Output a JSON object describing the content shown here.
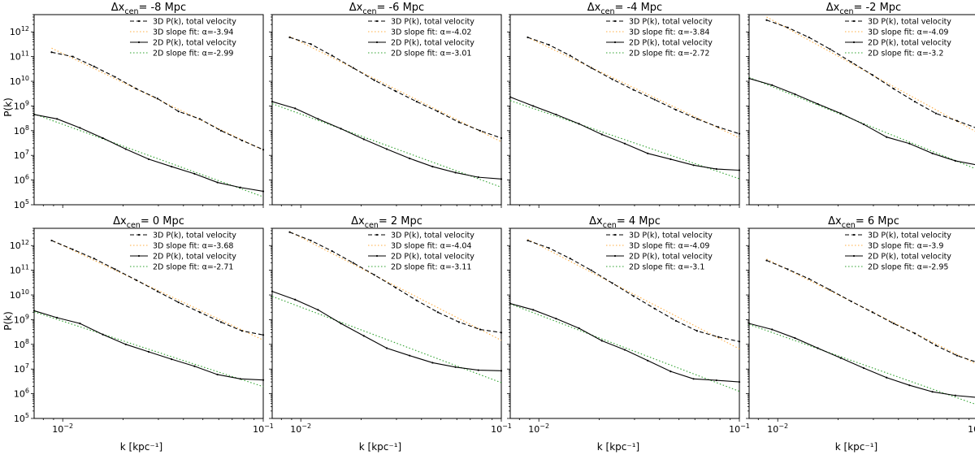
{
  "figure": {
    "ylabel": "P(k)",
    "xlabel": "k [kpc⁻¹]"
  },
  "chart_data": {
    "type": "line",
    "xscale": "log",
    "yscale": "log",
    "xlim": [
      0.0072,
      0.1
    ],
    "ylim": [
      100000,
      5000000000000
    ],
    "x_ticks": [
      {
        "value": 0.01,
        "mantissa": "10",
        "exp": "−2"
      },
      {
        "value": 0.1,
        "mantissa": "10",
        "exp": "−1"
      }
    ],
    "y_ticks": [
      {
        "value": 100000,
        "mantissa": "10",
        "exp": "5"
      },
      {
        "value": 1000000,
        "mantissa": "10",
        "exp": "6"
      },
      {
        "value": 10000000,
        "mantissa": "10",
        "exp": "7"
      },
      {
        "value": 100000000,
        "mantissa": "10",
        "exp": "8"
      },
      {
        "value": 1000000000,
        "mantissa": "10",
        "exp": "9"
      },
      {
        "value": 10000000000,
        "mantissa": "10",
        "exp": "10"
      },
      {
        "value": 100000000000,
        "mantissa": "10",
        "exp": "11"
      },
      {
        "value": 1000000000000,
        "mantissa": "10",
        "exp": "12"
      }
    ],
    "legend_labels": [
      "3D P(k), total velocity",
      "3D slope fit: ",
      "2D P(k), total velocity",
      "2D slope fit: "
    ],
    "legend_position": "top-right",
    "series_styles": [
      {
        "name": "3D P(k)",
        "color": "#000000",
        "dash": "dashed"
      },
      {
        "name": "3D slope fit",
        "color": "#ffae42",
        "dash": "dotted"
      },
      {
        "name": "2D P(k)",
        "color": "#000000",
        "dash": "solid"
      },
      {
        "name": "2D slope fit",
        "color": "#2ca02c",
        "dash": "dotted"
      }
    ],
    "panels": [
      {
        "title_prefix": "Δx",
        "title_sub": "cen",
        "title_suffix": "= -8 Mpc",
        "alpha3d": "α=-3.94",
        "alpha2d": "α=-2.99",
        "k3d_start": 0.0088,
        "p3d": [
          150000000000.0,
          100000000000.0,
          40000000000.0,
          15000000000.0,
          5000000000.0,
          2000000000.0,
          600000000.0,
          300000000.0,
          100000000.0,
          40000000.0,
          17000000.0
        ],
        "k2d_start": 0.0072,
        "p2d": [
          450000000.0,
          300000000.0,
          130000000.0,
          50000000.0,
          18000000.0,
          7000000.0,
          3500000.0,
          1800000.0,
          800000.0,
          500000.0,
          350000.0
        ]
      },
      {
        "title_prefix": "Δx",
        "title_sub": "cen",
        "title_suffix": "= -6 Mpc",
        "alpha3d": "α=-4.02",
        "alpha2d": "α=-3.01",
        "k3d_start": 0.0088,
        "p3d": [
          600000000000.0,
          320000000000.0,
          110000000000.0,
          35000000000.0,
          11000000000.0,
          4000000000.0,
          1500000000.0,
          600000000.0,
          220000000.0,
          100000000.0,
          50000000.0
        ],
        "k2d_start": 0.0072,
        "p2d": [
          1500000000.0,
          800000000.0,
          300000000.0,
          120000000.0,
          45000000.0,
          18000000.0,
          7500000.0,
          3500000.0,
          2000000.0,
          1300000.0,
          1100000.0
        ]
      },
      {
        "title_prefix": "Δx",
        "title_sub": "cen",
        "title_suffix": "= -4 Mpc",
        "alpha3d": "α=-3.84",
        "alpha2d": "α=-2.72",
        "k3d_start": 0.0088,
        "p3d": [
          600000000000.0,
          300000000000.0,
          110000000000.0,
          35000000000.0,
          12000000000.0,
          4500000000.0,
          1800000000.0,
          700000000.0,
          300000000.0,
          140000000.0,
          75000000.0
        ],
        "k2d_start": 0.0072,
        "p2d": [
          2300000000.0,
          1000000000.0,
          450000000.0,
          190000000.0,
          70000000.0,
          30000000.0,
          12000000.0,
          7000000.0,
          4000000.0,
          2800000.0,
          2500000.0
        ]
      },
      {
        "title_prefix": "Δx",
        "title_sub": "cen",
        "title_suffix": "= -2 Mpc",
        "alpha3d": "α=-4.09",
        "alpha2d": "α=-3.2",
        "k3d_start": 0.0088,
        "p3d": [
          3000000000000.0,
          1500000000000.0,
          600000000000.0,
          200000000000.0,
          60000000000.0,
          18000000000.0,
          5000000000.0,
          1500000000.0,
          500000000.0,
          250000000.0,
          120000000.0
        ],
        "k2d_start": 0.0072,
        "p2d": [
          13000000000.0,
          7000000000.0,
          3000000000.0,
          1200000000.0,
          500000000.0,
          180000000.0,
          55000000.0,
          30000000.0,
          12000000.0,
          6000000.0,
          4000000.0
        ]
      },
      {
        "title_prefix": "Δx",
        "title_sub": "cen",
        "title_suffix": "= 0 Mpc",
        "alpha3d": "α=-3.68",
        "alpha2d": "α=-2.71",
        "k3d_start": 0.0088,
        "p3d": [
          1600000000000.0,
          700000000000.0,
          300000000000.0,
          110000000000.0,
          40000000000.0,
          14000000000.0,
          5000000000.0,
          2000000000.0,
          800000000.0,
          350000000.0,
          240000000.0
        ],
        "k2d_start": 0.0072,
        "p2d": [
          2300000000.0,
          1200000000.0,
          700000000.0,
          250000000.0,
          100000000.0,
          50000000.0,
          25000000.0,
          13000000.0,
          6000000.0,
          4000000.0,
          3600000.0
        ]
      },
      {
        "title_prefix": "Δx",
        "title_sub": "cen",
        "title_suffix": "= 2 Mpc",
        "alpha3d": "α=-4.04",
        "alpha2d": "α=-3.11",
        "k3d_start": 0.0088,
        "p3d": [
          3500000000000.0,
          1600000000000.0,
          600000000000.0,
          200000000000.0,
          65000000000.0,
          20000000000.0,
          6000000000.0,
          2000000000.0,
          800000000.0,
          400000000.0,
          300000000.0
        ],
        "k2d_start": 0.0072,
        "p2d": [
          14000000000.0,
          6500000000.0,
          2500000000.0,
          700000000.0,
          220000000.0,
          70000000.0,
          35000000.0,
          18000000.0,
          12000000.0,
          9000000.0,
          8500000.0
        ]
      },
      {
        "title_prefix": "Δx",
        "title_sub": "cen",
        "title_suffix": "= 4 Mpc",
        "alpha3d": "α=-4.09",
        "alpha2d": "α=-3.1",
        "k3d_start": 0.0088,
        "p3d": [
          1600000000000.0,
          800000000000.0,
          300000000000.0,
          100000000000.0,
          30000000000.0,
          9000000000.0,
          2800000000.0,
          900000000.0,
          350000000.0,
          200000000.0,
          130000000.0
        ],
        "k2d_start": 0.0072,
        "p2d": [
          4500000000.0,
          2500000000.0,
          1100000000.0,
          450000000.0,
          140000000.0,
          60000000.0,
          22000000.0,
          8000000.0,
          4000000.0,
          3500000.0,
          3000000.0
        ]
      },
      {
        "title_prefix": "Δx",
        "title_sub": "cen",
        "title_suffix": "= 6 Mpc",
        "alpha3d": "α=-3.9",
        "alpha2d": "α=-2.95",
        "k3d_start": 0.0088,
        "p3d": [
          250000000000.0,
          110000000000.0,
          45000000000.0,
          16000000000.0,
          5500000000.0,
          2000000000.0,
          700000000.0,
          280000000.0,
          90000000.0,
          35000000.0,
          18000000.0
        ],
        "k2d_start": 0.0072,
        "p2d": [
          700000000.0,
          400000000.0,
          180000000.0,
          70000000.0,
          28000000.0,
          11000000.0,
          4500000.0,
          2200000.0,
          1200000.0,
          850000.0,
          700000.0
        ]
      }
    ]
  }
}
